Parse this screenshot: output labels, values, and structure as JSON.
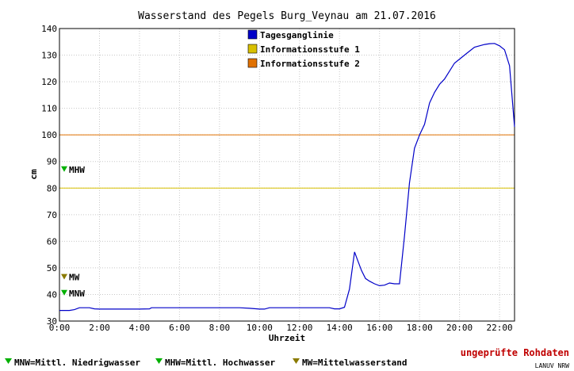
{
  "chart_data": {
    "type": "line",
    "title": "Wasserstand des Pegels Burg_Veynau am  21.07.2016",
    "xlabel": "Uhrzeit",
    "ylabel": "cm",
    "xlim": [
      0,
      22.75
    ],
    "ylim": [
      30,
      140
    ],
    "x_ticks": [
      "0:00",
      "2:00",
      "4:00",
      "6:00",
      "8:00",
      "10:00",
      "12:00",
      "14:00",
      "16:00",
      "18:00",
      "20:00",
      "22:00"
    ],
    "y_ticks": [
      30,
      40,
      50,
      60,
      70,
      80,
      90,
      100,
      110,
      120,
      130,
      140
    ],
    "grid": true,
    "legend_placement": "top-center",
    "series": [
      {
        "name": "Tagesganglinie",
        "color": "#0000c8",
        "x": [
          0,
          0.25,
          0.5,
          0.75,
          1.0,
          1.25,
          1.5,
          1.75,
          2.0,
          3.0,
          4.0,
          4.5,
          4.6,
          5.0,
          6.0,
          7.0,
          8.0,
          9.0,
          9.5,
          10.0,
          10.25,
          10.5,
          11.0,
          12.0,
          13.0,
          13.5,
          13.75,
          14.0,
          14.25,
          14.5,
          14.75,
          14.9,
          15.1,
          15.3,
          15.5,
          15.75,
          16.0,
          16.25,
          16.5,
          16.75,
          17.0,
          17.25,
          17.5,
          17.75,
          18.0,
          18.25,
          18.5,
          18.75,
          19.0,
          19.25,
          19.5,
          19.75,
          20.0,
          20.25,
          20.5,
          20.75,
          21.0,
          21.25,
          21.5,
          21.75,
          22.0,
          22.25,
          22.5,
          22.75
        ],
        "y": [
          34,
          34,
          34,
          34.3,
          35,
          35,
          35,
          34.6,
          34.5,
          34.5,
          34.5,
          34.6,
          35,
          35,
          35,
          35,
          35,
          35,
          34.8,
          34.5,
          34.5,
          35,
          35,
          35,
          35,
          35,
          34.6,
          34.6,
          35.2,
          42,
          56,
          53,
          49,
          46,
          45,
          44,
          43.3,
          43.5,
          44.3,
          44,
          44,
          62,
          82,
          95,
          100,
          104,
          112,
          116,
          119,
          121,
          124,
          127,
          128.5,
          130,
          131.5,
          133,
          133.5,
          134,
          134.3,
          134.4,
          133.5,
          132,
          126,
          103
        ]
      }
    ],
    "thresholds": [
      {
        "name": "Informationsstufe 1",
        "value": 80,
        "color": "#d8c000"
      },
      {
        "name": "Informationsstufe 2",
        "value": 100,
        "color": "#e07000"
      }
    ],
    "markers": [
      {
        "label": "MHW",
        "value": 87,
        "color": "#00b000"
      },
      {
        "label": "MW",
        "value": 46.5,
        "color": "#8a7a00"
      },
      {
        "label": "MNW",
        "value": 40.5,
        "color": "#00b000"
      }
    ]
  },
  "footer": {
    "legend": [
      {
        "text": "MNW=Mittl. Niedrigwasser",
        "color": "#00b000"
      },
      {
        "text": "MHW=Mittl. Hochwasser",
        "color": "#00b000"
      },
      {
        "text": "MW=Mittelwasserstand",
        "color": "#8a7a00"
      }
    ],
    "status": "ungeprüfte Rohdaten",
    "source": "LANUV NRW"
  }
}
